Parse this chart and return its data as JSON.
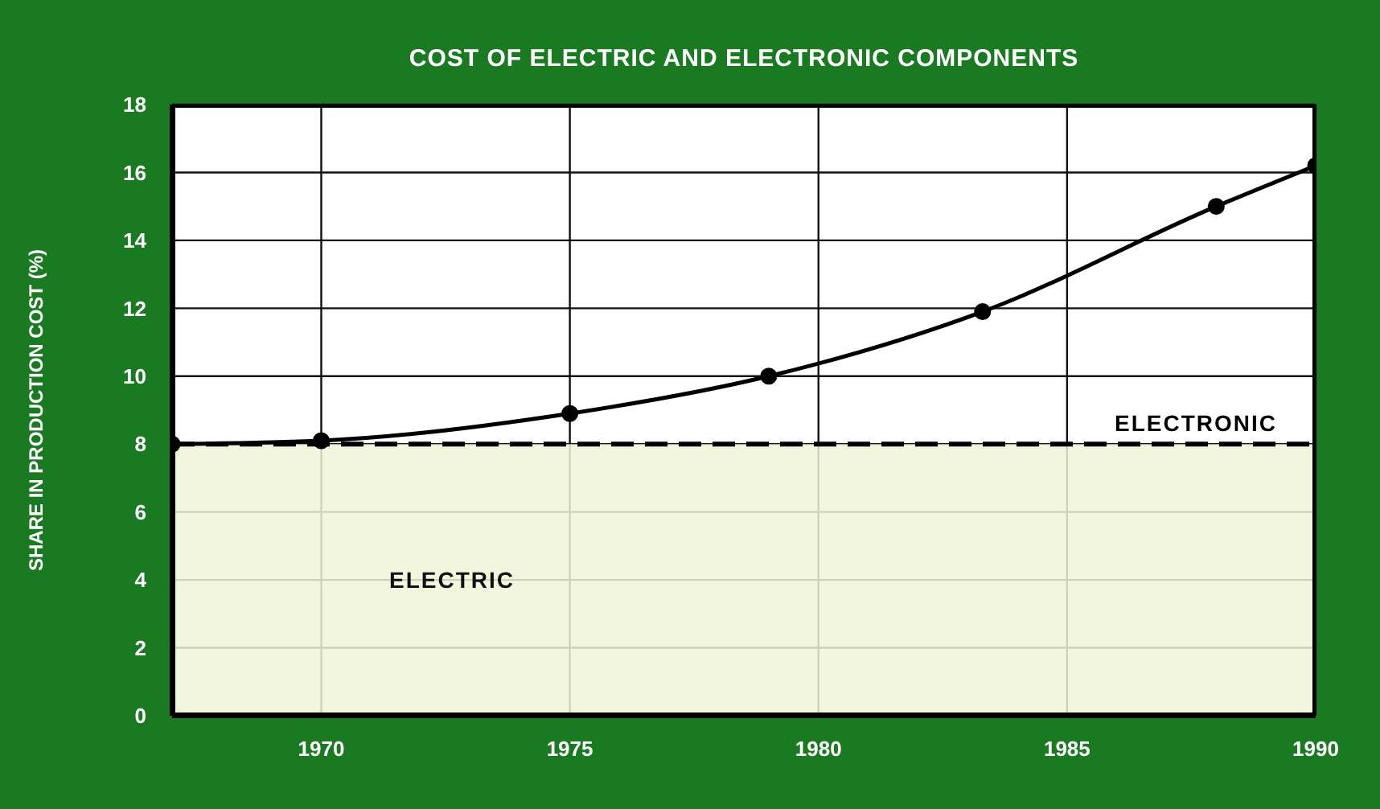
{
  "chart_data": {
    "type": "line",
    "title": "COST OF ELECTRIC AND ELECTRONIC COMPONENTS",
    "ylabel": "SHARE IN PRODUCTION COST  (%)",
    "x": [
      1967,
      1970,
      1975,
      1979,
      1983.3,
      1988,
      1990
    ],
    "series": [
      {
        "name": "ELECTRONIC",
        "color": "#000000",
        "values": [
          8,
          8.1,
          8.9,
          10,
          11.9,
          15,
          16.2
        ]
      }
    ],
    "xlim": [
      1967,
      1990
    ],
    "xticks": [
      1970,
      1975,
      1980,
      1985,
      1990
    ],
    "ylim": [
      0,
      18
    ],
    "yticks": [
      0,
      2,
      4,
      6,
      8,
      10,
      12,
      14,
      16,
      18
    ],
    "grid": true,
    "marker": "circle",
    "line_style": "solid",
    "ref_lines": [
      {
        "axis": "y",
        "value": 8,
        "line_style": "dashed",
        "color": "#000000"
      }
    ],
    "bands": [
      {
        "axis": "y",
        "from": 0,
        "to": 8,
        "label": "ELECTRIC",
        "color": "#eef4d6"
      }
    ]
  }
}
